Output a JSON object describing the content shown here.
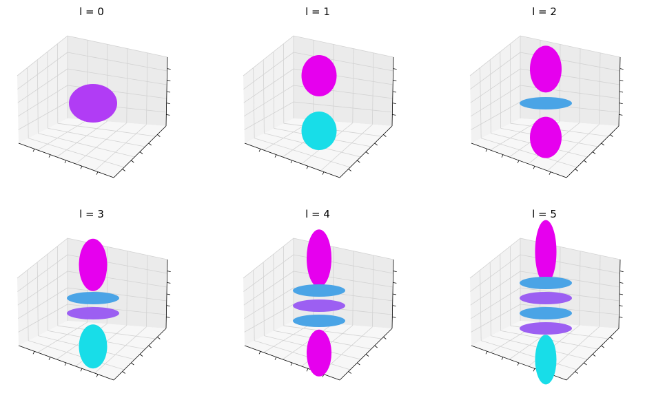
{
  "chart_data": {
    "type": "3d-surface",
    "title": "",
    "xlabel": "",
    "ylabel": "",
    "zlabel": "",
    "grid": true,
    "tick_labels_shown": false,
    "colormap": "cool",
    "colors": {
      "cyan": "#18dde8",
      "magenta": "#e600ee",
      "violet": "#9c5ff2",
      "blue": "#4aa4e6",
      "pane": "#f2f2f2",
      "grid": "#d2d2d2"
    },
    "panels": [
      {
        "title": "l = 0",
        "l": 0
      },
      {
        "title": "l = 1",
        "l": 1
      },
      {
        "title": "l = 2",
        "l": 2
      },
      {
        "title": "l = 3",
        "l": 3
      },
      {
        "title": "l = 4",
        "l": 4
      },
      {
        "title": "l = 5",
        "l": 5
      }
    ]
  }
}
